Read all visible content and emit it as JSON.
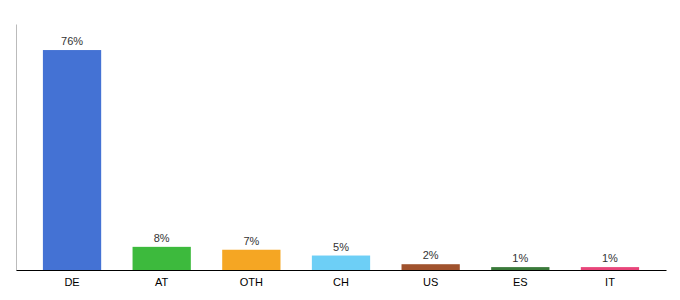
{
  "chart_data": {
    "type": "bar",
    "categories": [
      "DE",
      "AT",
      "OTH",
      "CH",
      "US",
      "ES",
      "IT"
    ],
    "values": [
      76,
      8,
      7,
      5,
      2,
      1,
      1
    ],
    "value_labels": [
      "76%",
      "8%",
      "7%",
      "5%",
      "2%",
      "1%",
      "1%"
    ],
    "colors": [
      "#4472d4",
      "#3dba3d",
      "#f5a623",
      "#6dcff6",
      "#a0522d",
      "#3a7a3a",
      "#e8457a"
    ],
    "ylim": [
      0,
      85
    ],
    "data_labels": true,
    "tick_labels": "x"
  }
}
